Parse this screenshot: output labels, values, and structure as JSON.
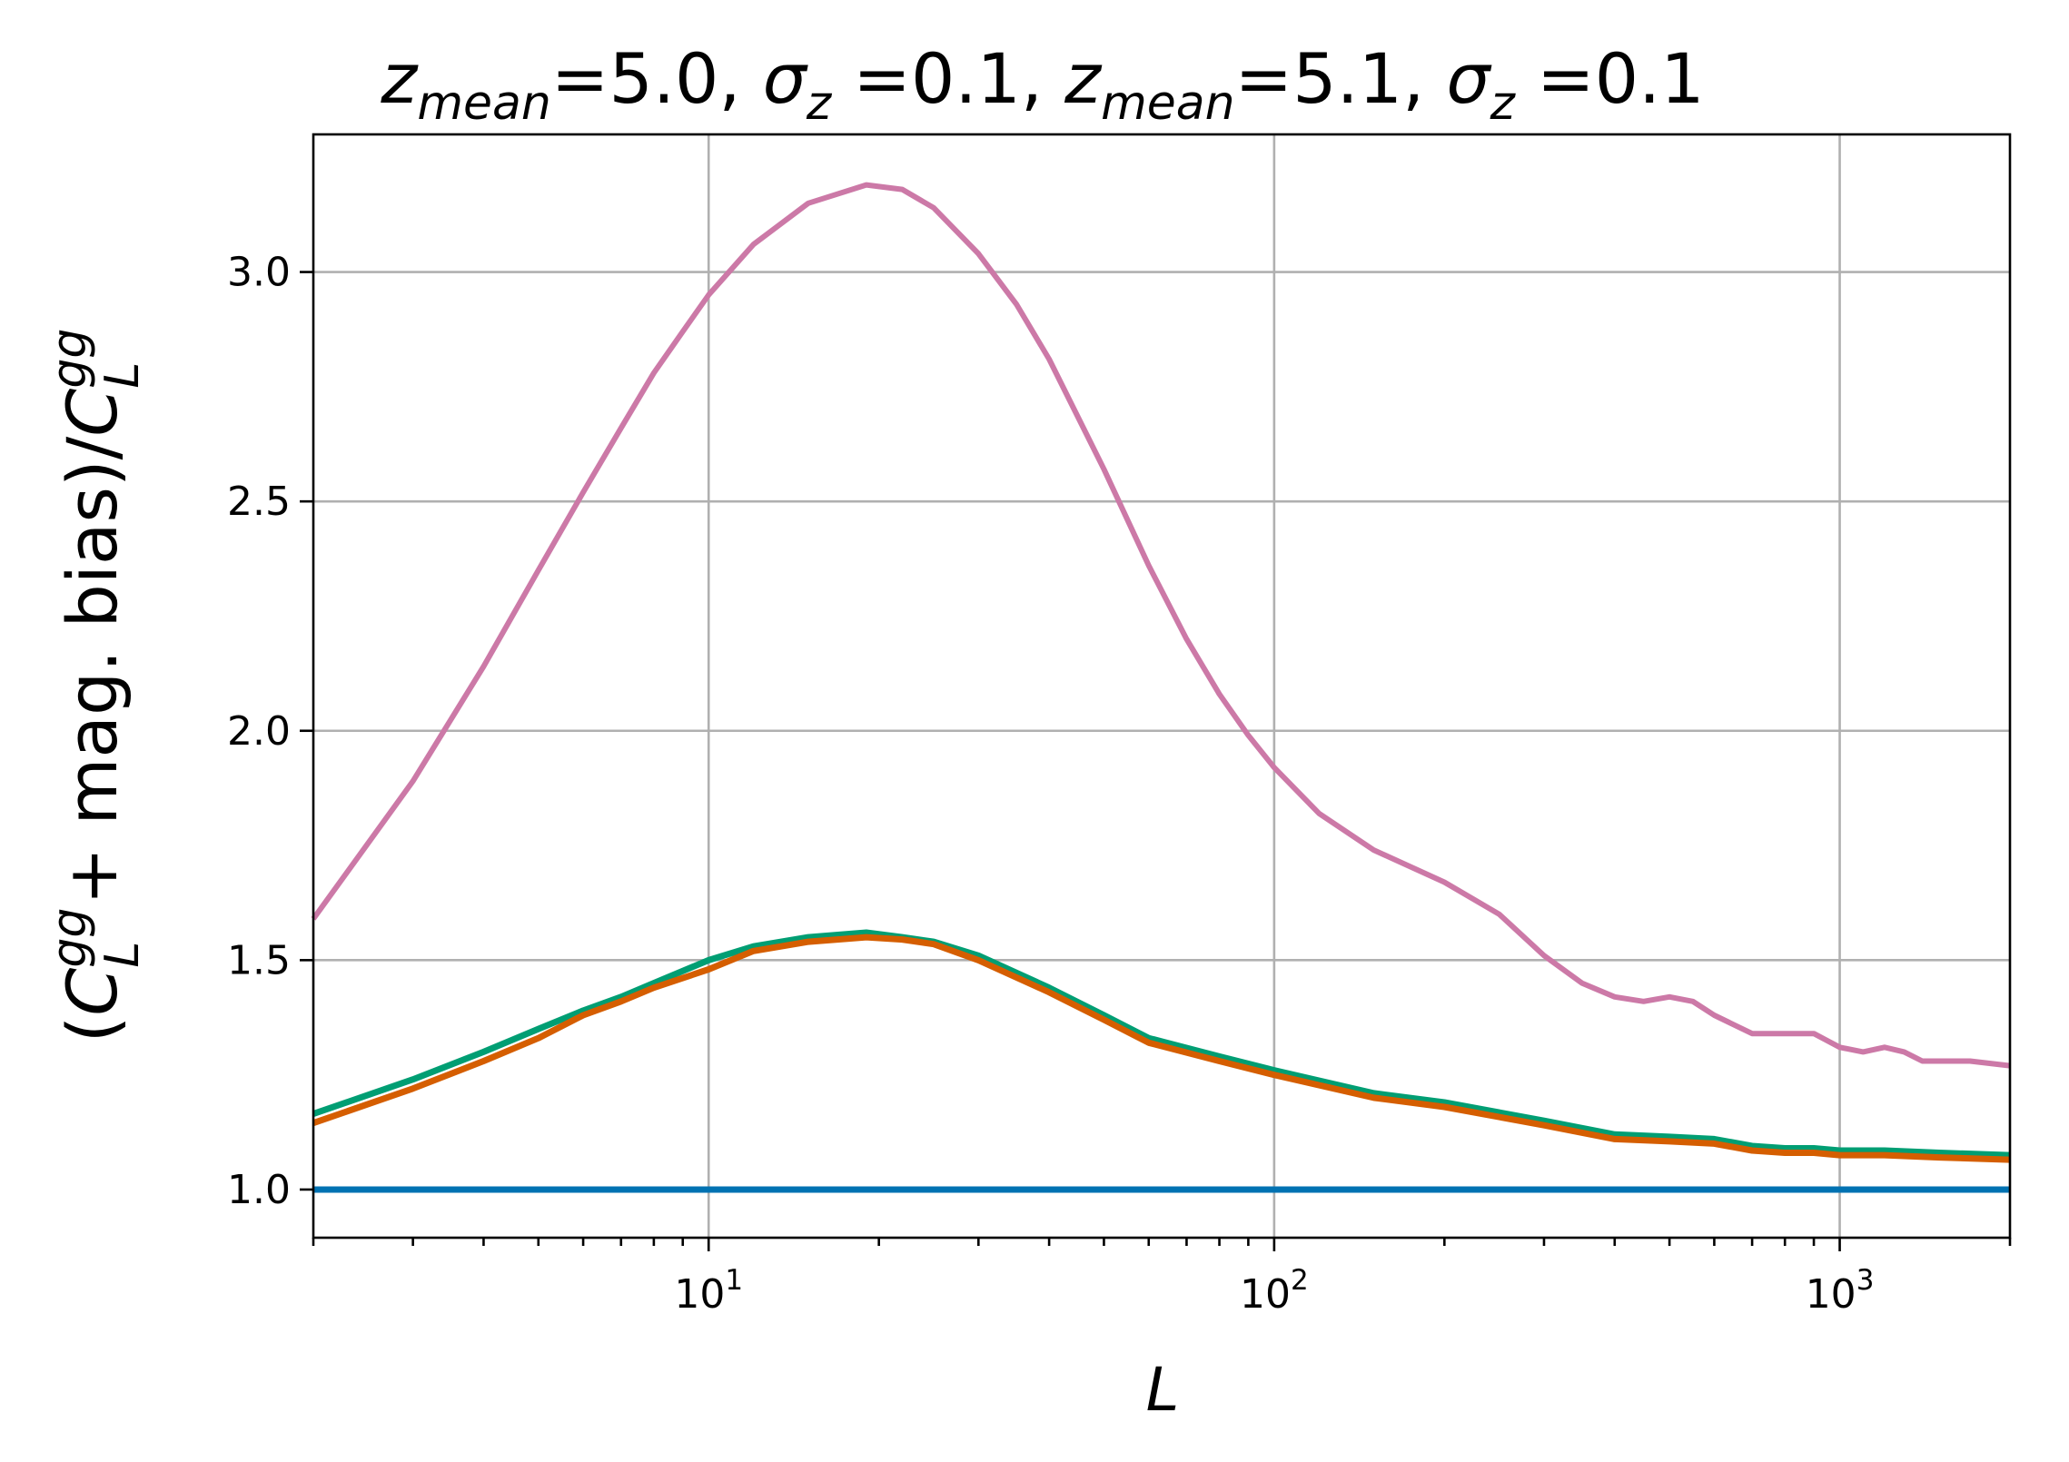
{
  "chart_data": {
    "type": "line",
    "title": {
      "part1_var": "z",
      "part1_sub": "mean",
      "part1_val": "=5.0, ",
      "part2_var": "σ",
      "part2_sub": "z",
      "part2_val": " =0.1, ",
      "part3_var": "z",
      "part3_sub": "mean",
      "part3_val": "=5.1, ",
      "part4_var": "σ",
      "part4_sub": "z",
      "part4_val": " =0.1"
    },
    "xlabel": "L",
    "ylabel": {
      "open": "(",
      "c1": "C",
      "c1_sup": "gg",
      "c1_sub": "L",
      "middle": " + mag. bias)/",
      "c2": "C",
      "c2_sup": "gg",
      "c2_sub": "L"
    },
    "xscale": "log",
    "xlim": [
      2,
      2000
    ],
    "ylim": [
      0.895,
      3.3
    ],
    "grid": true,
    "x_ticks": [
      {
        "value": 10,
        "base": "10",
        "exp": "1"
      },
      {
        "value": 100,
        "base": "10",
        "exp": "2"
      },
      {
        "value": 1000,
        "base": "10",
        "exp": "3"
      }
    ],
    "y_ticks": [
      {
        "value": 1.0,
        "label": "1.0"
      },
      {
        "value": 1.5,
        "label": "1.5"
      },
      {
        "value": 2.0,
        "label": "2.0"
      },
      {
        "value": 2.5,
        "label": "2.5"
      },
      {
        "value": 3.0,
        "label": "3.0"
      }
    ],
    "series": [
      {
        "color": "#cc79a7",
        "x": [
          2,
          3,
          4,
          5,
          6,
          7,
          8,
          9,
          10,
          12,
          15,
          19,
          22,
          25,
          30,
          35,
          40,
          50,
          60,
          70,
          80,
          90,
          100,
          120,
          150,
          200,
          250,
          300,
          350,
          400,
          450,
          500,
          550,
          600,
          700,
          800,
          900,
          1000,
          1100,
          1200,
          1300,
          1400,
          1500,
          1700,
          2000
        ],
        "y": [
          1.59,
          1.89,
          2.14,
          2.35,
          2.52,
          2.66,
          2.78,
          2.87,
          2.95,
          3.06,
          3.15,
          3.19,
          3.18,
          3.14,
          3.04,
          2.93,
          2.81,
          2.57,
          2.36,
          2.2,
          2.08,
          1.99,
          1.92,
          1.82,
          1.74,
          1.67,
          1.6,
          1.51,
          1.45,
          1.42,
          1.41,
          1.42,
          1.41,
          1.38,
          1.34,
          1.34,
          1.34,
          1.31,
          1.3,
          1.31,
          1.3,
          1.28,
          1.28,
          1.28,
          1.27
        ]
      },
      {
        "color": "#009e73",
        "x": [
          2,
          3,
          4,
          5,
          6,
          7,
          8,
          10,
          12,
          15,
          19,
          22,
          25,
          30,
          40,
          50,
          60,
          80,
          100,
          150,
          200,
          300,
          400,
          500,
          600,
          700,
          800,
          900,
          1000,
          1200,
          1500,
          2000
        ],
        "y": [
          1.165,
          1.24,
          1.3,
          1.35,
          1.39,
          1.42,
          1.45,
          1.5,
          1.53,
          1.55,
          1.56,
          1.55,
          1.54,
          1.51,
          1.44,
          1.38,
          1.33,
          1.29,
          1.26,
          1.21,
          1.19,
          1.15,
          1.12,
          1.115,
          1.11,
          1.095,
          1.09,
          1.09,
          1.085,
          1.085,
          1.08,
          1.075
        ]
      },
      {
        "color": "#d55e00",
        "x": [
          2,
          3,
          4,
          5,
          6,
          7,
          8,
          10,
          12,
          15,
          19,
          22,
          25,
          30,
          40,
          50,
          60,
          80,
          100,
          150,
          200,
          300,
          400,
          500,
          600,
          700,
          800,
          900,
          1000,
          1200,
          1500,
          2000
        ],
        "y": [
          1.145,
          1.22,
          1.28,
          1.33,
          1.38,
          1.41,
          1.44,
          1.48,
          1.52,
          1.54,
          1.55,
          1.545,
          1.535,
          1.5,
          1.43,
          1.37,
          1.32,
          1.28,
          1.25,
          1.2,
          1.18,
          1.14,
          1.11,
          1.105,
          1.1,
          1.085,
          1.08,
          1.08,
          1.075,
          1.075,
          1.07,
          1.065
        ]
      },
      {
        "color": "#0072b2",
        "x": [
          2,
          2000
        ],
        "y": [
          1.0,
          1.0
        ]
      }
    ]
  }
}
